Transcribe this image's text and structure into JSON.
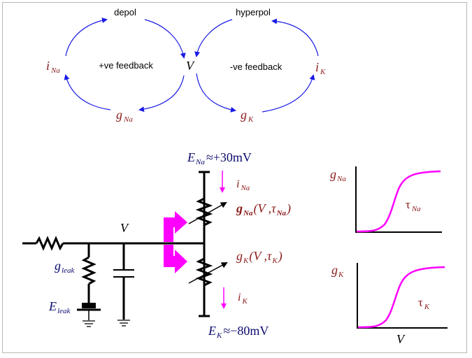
{
  "colors": {
    "maroon": "#8b1a1a",
    "navy": "#0a0a6e",
    "blue_arrow": "#1a1ae6",
    "magenta": "#ff00ff",
    "black": "#000000",
    "frame": "#b8b8b8"
  },
  "feedback_loops": {
    "depol": "depol",
    "hyperpol": "hyperpol",
    "positive_feedback": "+ve feedback",
    "negative_feedback": "-ve feedback",
    "i_na": {
      "base": "i",
      "sub": "Na"
    },
    "g_na": {
      "base": "g",
      "sub": "Na"
    },
    "v": "V",
    "g_k": {
      "base": "g",
      "sub": "K"
    },
    "i_k": {
      "base": "i",
      "sub": "K"
    }
  },
  "circuit": {
    "e_na": {
      "base": "E",
      "sub": "Na",
      "value": "≈+30mV"
    },
    "i_na": {
      "base": "i",
      "sub": "Na"
    },
    "g_na_fn": {
      "base": "g",
      "sub": "Na",
      "args": "(V ,τ",
      "tau_sub": "Na",
      "close": ")"
    },
    "v": "V",
    "g_k_fn": {
      "base": "g",
      "sub": "K",
      "args": "(V ,τ",
      "tau_sub": "K",
      "close": ")"
    },
    "i_k": {
      "base": "i",
      "sub": "K"
    },
    "e_k": {
      "base": "E",
      "sub": "K",
      "value": "≈−80mV"
    },
    "g_leak": {
      "base": "g",
      "sub": "leak"
    },
    "e_leak": {
      "base": "E",
      "sub": "leak"
    }
  },
  "graphs": {
    "g_na": {
      "y_base": "g",
      "y_sub": "Na",
      "tau": "τ",
      "tau_sub": "Na"
    },
    "g_k": {
      "y_base": "g",
      "y_sub": "K",
      "tau": "τ",
      "tau_sub": "K",
      "x": "V"
    }
  }
}
